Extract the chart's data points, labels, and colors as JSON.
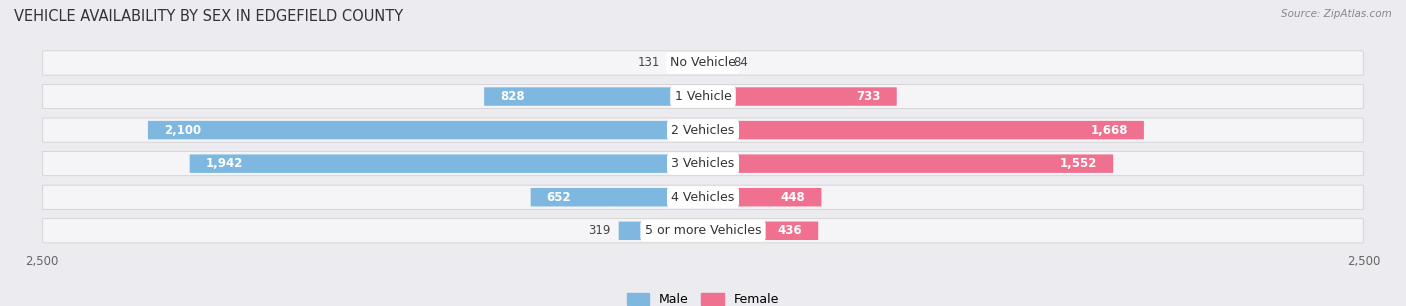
{
  "title": "VEHICLE AVAILABILITY BY SEX IN EDGEFIELD COUNTY",
  "source": "Source: ZipAtlas.com",
  "categories": [
    "No Vehicle",
    "1 Vehicle",
    "2 Vehicles",
    "3 Vehicles",
    "4 Vehicles",
    "5 or more Vehicles"
  ],
  "male_values": [
    131,
    828,
    2100,
    1942,
    652,
    319
  ],
  "female_values": [
    84,
    733,
    1668,
    1552,
    448,
    436
  ],
  "male_color": "#7eb8e0",
  "female_color": "#f07090",
  "male_label": "Male",
  "female_label": "Female",
  "xlim": 2500,
  "background_color": "#ebebf0",
  "row_bg_color": "#f5f5f8",
  "title_fontsize": 10.5,
  "label_fontsize": 9,
  "value_fontsize": 8.5,
  "male_threshold": 350,
  "female_threshold": 350
}
